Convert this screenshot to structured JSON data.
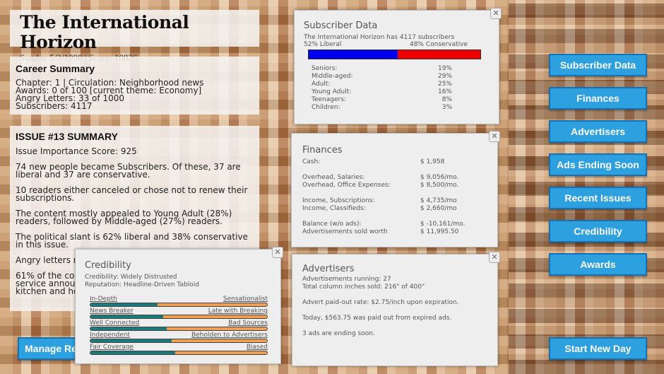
{
  "header": {
    "title": "The International Horizon",
    "subtitle": "Sunday 5/3/1998 | Score: 10826"
  },
  "career": {
    "heading": "Career Summary",
    "lines": [
      "Chapter: 1 | Circulation: Neighborhood news",
      "Awards: 0 of 100 [current theme: Economy]",
      "Angry Letters: 33 of 1000",
      "Subscribers: 4117"
    ]
  },
  "issue": {
    "heading": "ISSUE #13 SUMMARY",
    "paragraphs": [
      "Issue Importance Score: 925",
      "74 new people became Subscribers. Of these, 37 are liberal and 37 are conservative.",
      "10 readers either canceled or chose not to renew their subscriptions.",
      "The content mostly appealed to Young Adult (28%) readers, followed by Middle-aged (27%) readers.",
      "The political slant is 62% liberal and 38% conservative in this issue.",
      "Angry letters re",
      "61% of the con service announ kitchen and ho"
    ]
  },
  "subscriber": {
    "title": "Subscriber Data",
    "summary": "The International Horizon has 4117 subscribers",
    "liberal_label": "52% Liberal",
    "conservative_label": "48% Conservative",
    "liberal_pct": 52,
    "liberal_color": "#0000ee",
    "conservative_color": "#ee0000",
    "ages": [
      {
        "label": "Seniors:",
        "value": "19%"
      },
      {
        "label": "Middle-aged:",
        "value": "29%"
      },
      {
        "label": "Adult:",
        "value": "25%"
      },
      {
        "label": "Young Adult:",
        "value": "16%"
      },
      {
        "label": "Teenagers:",
        "value": "8%"
      },
      {
        "label": "Children:",
        "value": "3%"
      }
    ]
  },
  "finances": {
    "title": "Finances",
    "groups": [
      [
        {
          "label": "Cash:",
          "value": "$ 1,958"
        }
      ],
      [
        {
          "label": "Overhead, Salaries:",
          "value": "$ 9,056/mo."
        },
        {
          "label": "Overhead, Office Expenses:",
          "value": "$ 8,500/mo."
        }
      ],
      [
        {
          "label": "Income, Subscriptions:",
          "value": "$ 4,735/mo"
        },
        {
          "label": "Income, Classifieds:",
          "value": "$ 2,660/mo"
        }
      ],
      [
        {
          "label": "Balance (w/o ads):",
          "value": "$ -10,161/mo."
        },
        {
          "label": "Advertisements sold worth",
          "value": "$ 11,995.50"
        }
      ]
    ]
  },
  "advertisers": {
    "title": "Advertisers",
    "line1": "Advertisements running: 27",
    "line2": "Total column inches sold: 216\" of 400\"",
    "line3": "Advert paid-out rate: $2.75/inch upon expiration.",
    "line4": "Today, $563.75 was paid out from expired ads.",
    "line5": "3 ads are ending soon."
  },
  "credibility": {
    "title": "Credibility",
    "credibility": "Credibility: Widely Distrusted",
    "reputation": "Reputation: Headline-Driven Tabloid",
    "bars": [
      {
        "left": "In-Depth",
        "right": "Sensationalist",
        "value": 0.38
      },
      {
        "left": "News Breaker",
        "right": "Late with Breaking",
        "value": 0.41
      },
      {
        "left": "Well Connected",
        "right": "Bad Sources",
        "value": 0.43
      },
      {
        "left": "Independent",
        "right": "Beholden to Advertisers",
        "value": 0.46
      },
      {
        "left": "Fair Coverage",
        "right": "Biased",
        "value": 0.48
      }
    ]
  },
  "buttons": [
    "Subscriber Data",
    "Finances",
    "Advertisers",
    "Ads Ending Soon",
    "Recent Issues",
    "Credibility",
    "Awards"
  ],
  "manage_label": "Manage Re",
  "start_label": "Start New Day",
  "close_glyph": "✕"
}
